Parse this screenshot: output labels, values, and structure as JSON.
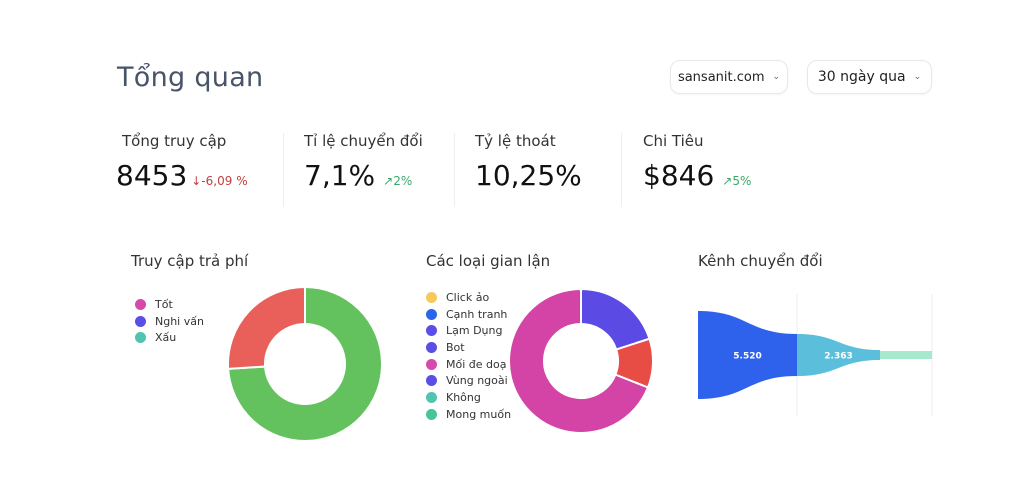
{
  "header": {
    "title": "Tổng quan",
    "site_select": "sansanit.com",
    "range_select": "30 ngày qua"
  },
  "kpis": [
    {
      "label": "Tổng truy cập",
      "value": "8453",
      "delta": "-6,09 %",
      "direction": "down",
      "icon": "arrow-down-icon"
    },
    {
      "label": "Tỉ lệ chuyển đổi",
      "value": "7,1%",
      "delta": "2%",
      "direction": "up",
      "icon": "arrow-up-right-icon"
    },
    {
      "label": "Tỷ lệ thoát",
      "value": "10,25%",
      "delta": "",
      "direction": ""
    },
    {
      "label": "Chi Tiêu",
      "value": "$846",
      "delta": "5%",
      "direction": "up",
      "icon": "arrow-up-right-icon"
    }
  ],
  "colors": {
    "down": "#c2403f",
    "up": "#3ca86a"
  },
  "chart_data": [
    {
      "type": "pie",
      "title": "Truy cập trả phí",
      "donut": true,
      "legend": [
        {
          "label": "Tốt",
          "color": "#d64aaa"
        },
        {
          "label": "Nghi vấn",
          "color": "#5a4ee6"
        },
        {
          "label": "Xấu",
          "color": "#4fc4b0"
        }
      ],
      "slices": [
        {
          "value": 74,
          "color": "#63c25e"
        },
        {
          "value": 26,
          "color": "#e9605a"
        }
      ]
    },
    {
      "type": "pie",
      "title": "Các loại gian lận",
      "donut": true,
      "legend": [
        {
          "label": "Click ảo",
          "color": "#f8c95a"
        },
        {
          "label": "Cạnh tranh",
          "color": "#2b66ea"
        },
        {
          "label": "Lạm Dụng",
          "color": "#5a4ee6"
        },
        {
          "label": "Bot",
          "color": "#5a4ee6"
        },
        {
          "label": "Mối đe doạ",
          "color": "#d64aaa"
        },
        {
          "label": "Vùng ngoài",
          "color": "#5a4ee6"
        },
        {
          "label": "Không",
          "color": "#4fc4b0"
        },
        {
          "label": "Mong muốn",
          "color": "#48c49a"
        }
      ],
      "slices": [
        {
          "value": 20,
          "color": "#5b4ae4"
        },
        {
          "value": 11,
          "color": "#e84d45"
        },
        {
          "value": 69,
          "color": "#d444a6"
        }
      ]
    },
    {
      "type": "funnel",
      "title": "Kênh chuyển đổi",
      "stages": [
        {
          "value": 5520,
          "label": "5.520",
          "color": "#2f62ec"
        },
        {
          "value": 2363,
          "label": "2.363",
          "color": "#5bbfdc"
        },
        {
          "value": null,
          "label": "",
          "color": "#a6e9cc"
        }
      ]
    }
  ]
}
